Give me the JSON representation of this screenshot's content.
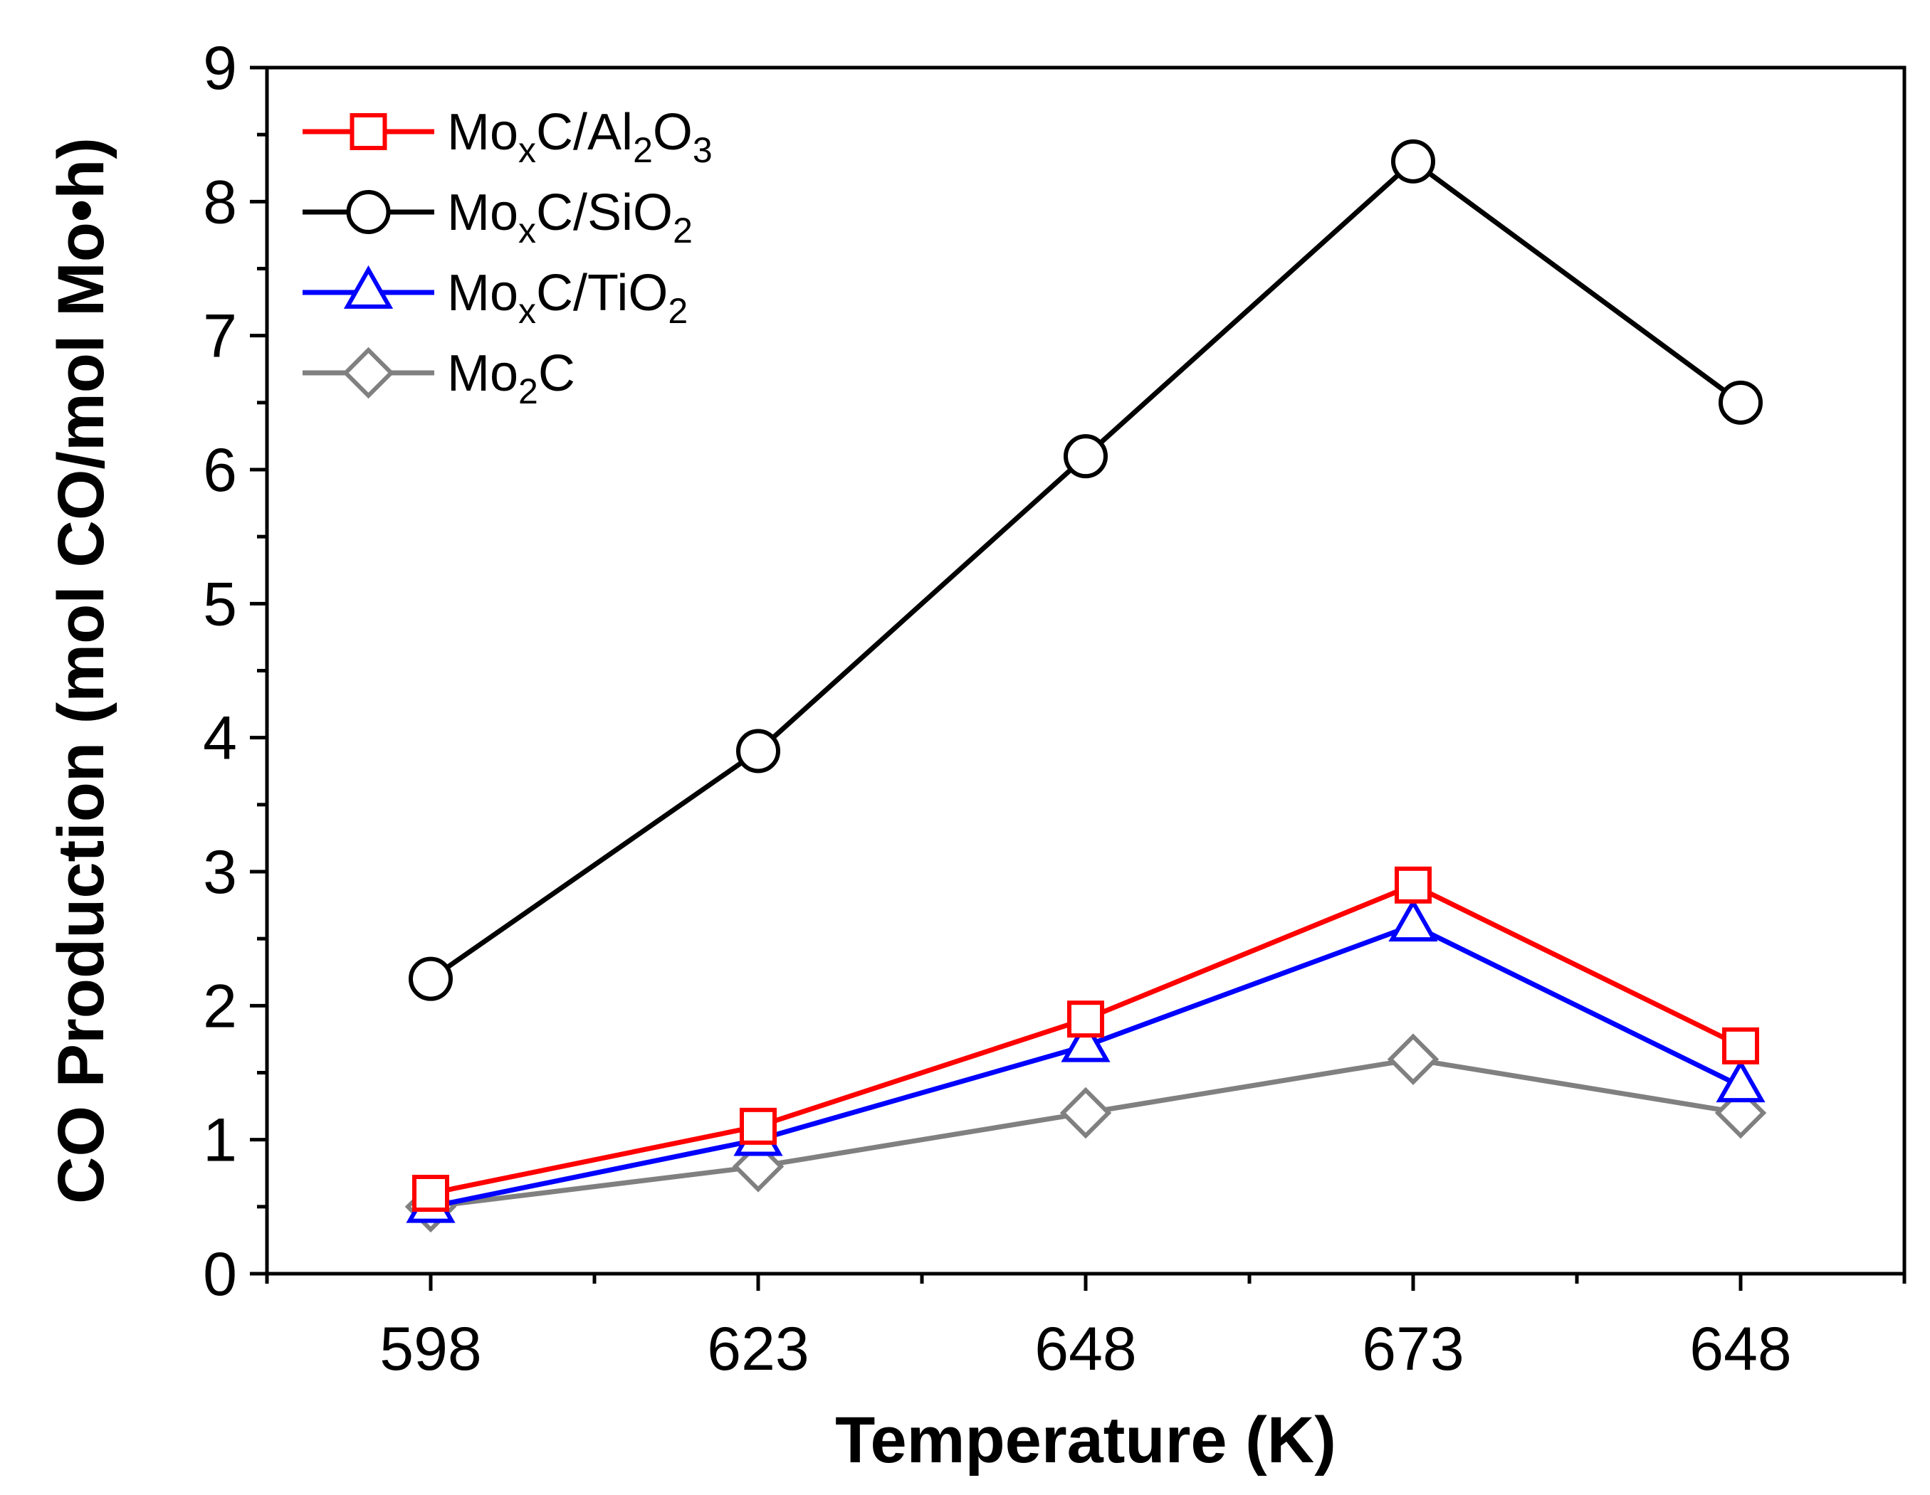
{
  "chart_data": {
    "type": "line",
    "title": "",
    "xlabel": "Temperature (K)",
    "ylabel": "CO Production (mol CO/mol Mo•h)",
    "categories": [
      "598",
      "623",
      "648",
      "673",
      "648"
    ],
    "ylim": [
      0,
      9
    ],
    "yticks": [
      "0",
      "1",
      "2",
      "3",
      "4",
      "5",
      "6",
      "7",
      "8",
      "9"
    ],
    "legend_position": "top-left",
    "series": [
      {
        "name": "MoxC/Al2O3",
        "legend": [
          {
            "t": "Mo",
            "s": ""
          },
          {
            "t": "x",
            "s": "sub"
          },
          {
            "t": "C/Al",
            "s": ""
          },
          {
            "t": "2",
            "s": "sub"
          },
          {
            "t": "O",
            "s": ""
          },
          {
            "t": "3",
            "s": "sub"
          }
        ],
        "color": "#ff0000",
        "marker": "square",
        "values": [
          0.6,
          1.1,
          1.9,
          2.9,
          1.7
        ]
      },
      {
        "name": "MoxC/SiO2",
        "legend": [
          {
            "t": "Mo",
            "s": ""
          },
          {
            "t": "x",
            "s": "sub"
          },
          {
            "t": "C/SiO",
            "s": ""
          },
          {
            "t": "2",
            "s": "sub"
          }
        ],
        "color": "#000000",
        "marker": "circle",
        "values": [
          2.2,
          3.9,
          6.1,
          8.3,
          6.5
        ]
      },
      {
        "name": "MoxC/TiO2",
        "legend": [
          {
            "t": "Mo",
            "s": ""
          },
          {
            "t": "x",
            "s": "sub"
          },
          {
            "t": "C/TiO",
            "s": ""
          },
          {
            "t": "2",
            "s": "sub"
          }
        ],
        "color": "#0000ff",
        "marker": "triangle",
        "values": [
          0.5,
          1.0,
          1.7,
          2.6,
          1.4
        ]
      },
      {
        "name": "Mo2C",
        "legend": [
          {
            "t": "Mo",
            "s": ""
          },
          {
            "t": "2",
            "s": "sub"
          },
          {
            "t": "C",
            "s": ""
          }
        ],
        "color": "#808080",
        "marker": "diamond",
        "values": [
          0.5,
          0.8,
          1.2,
          1.6,
          1.2
        ]
      }
    ]
  }
}
